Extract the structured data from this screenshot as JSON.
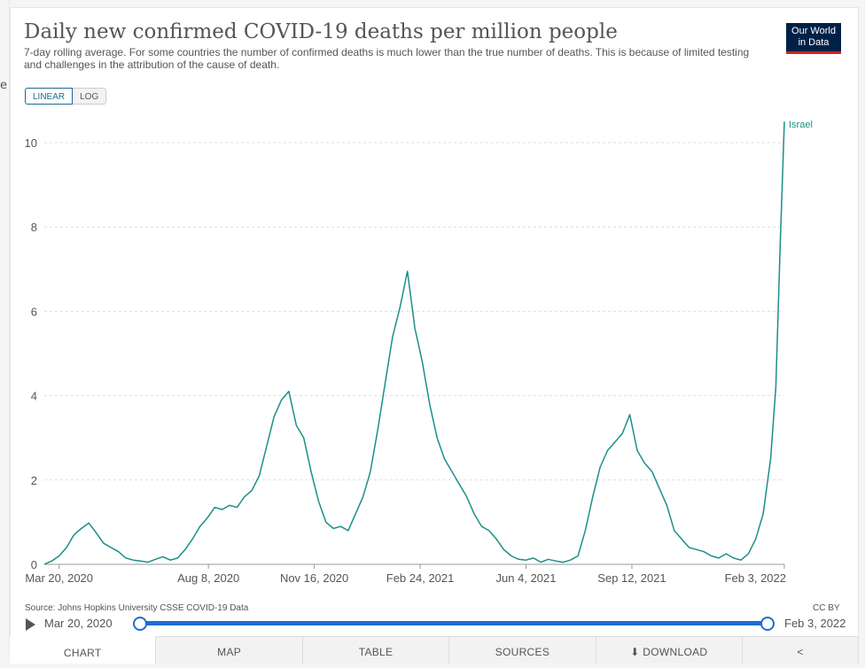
{
  "page": {
    "left_glyph": "e"
  },
  "header": {
    "title": "Daily new confirmed COVID-19 deaths per million people",
    "subtitle": "7-day rolling average. For some countries the number of confirmed deaths is much lower than the true number of deaths. This is because of limited testing and challenges in the attribution of the cause of death.",
    "logo_line1": "Our World",
    "logo_line2": "in Data"
  },
  "scale_toggle": {
    "linear_label": "LINEAR",
    "log_label": "LOG",
    "selected": "LINEAR"
  },
  "footer": {
    "source": "Source: Johns Hopkins University CSSE COVID-19 Data",
    "license": "CC BY"
  },
  "timeline": {
    "start_label": "Mar 20, 2020",
    "end_label": "Feb 3, 2022",
    "color": "#1f6bd6"
  },
  "tabs": [
    {
      "label": "CHART",
      "active": true
    },
    {
      "label": "MAP",
      "active": false
    },
    {
      "label": "TABLE",
      "active": false
    },
    {
      "label": "SOURCES",
      "active": false
    },
    {
      "label": "⬇ DOWNLOAD",
      "active": false
    },
    {
      "label": "share-icon",
      "active": false
    }
  ],
  "chart_data": {
    "type": "line",
    "title": "Daily new confirmed COVID-19 deaths per million people",
    "xlabel": "",
    "ylabel": "",
    "ylim": [
      0,
      10
    ],
    "yticks": [
      0,
      2,
      4,
      6,
      8,
      10
    ],
    "xticks": [
      "Mar 20, 2020",
      "Aug 8, 2020",
      "Nov 16, 2020",
      "Feb 24, 2021",
      "Jun 4, 2021",
      "Sep 12, 2021",
      "Feb 3, 2022"
    ],
    "x_domain": [
      "2020-03-06",
      "2022-02-03"
    ],
    "grid": true,
    "series": [
      {
        "name": "Israel",
        "color": "#1a8f8a",
        "points": [
          [
            "2020-03-06",
            0
          ],
          [
            "2020-03-13",
            0.08
          ],
          [
            "2020-03-20",
            0.2
          ],
          [
            "2020-03-27",
            0.4
          ],
          [
            "2020-04-03",
            0.7
          ],
          [
            "2020-04-10",
            0.85
          ],
          [
            "2020-04-17",
            0.98
          ],
          [
            "2020-04-24",
            0.75
          ],
          [
            "2020-05-01",
            0.5
          ],
          [
            "2020-05-08",
            0.4
          ],
          [
            "2020-05-15",
            0.3
          ],
          [
            "2020-05-22",
            0.15
          ],
          [
            "2020-05-29",
            0.1
          ],
          [
            "2020-06-05",
            0.08
          ],
          [
            "2020-06-12",
            0.05
          ],
          [
            "2020-06-19",
            0.12
          ],
          [
            "2020-06-26",
            0.18
          ],
          [
            "2020-07-03",
            0.1
          ],
          [
            "2020-07-10",
            0.15
          ],
          [
            "2020-07-17",
            0.35
          ],
          [
            "2020-07-24",
            0.6
          ],
          [
            "2020-07-31",
            0.9
          ],
          [
            "2020-08-07",
            1.1
          ],
          [
            "2020-08-14",
            1.35
          ],
          [
            "2020-08-21",
            1.3
          ],
          [
            "2020-08-28",
            1.4
          ],
          [
            "2020-09-04",
            1.35
          ],
          [
            "2020-09-11",
            1.6
          ],
          [
            "2020-09-18",
            1.75
          ],
          [
            "2020-09-25",
            2.1
          ],
          [
            "2020-10-02",
            2.8
          ],
          [
            "2020-10-09",
            3.5
          ],
          [
            "2020-10-16",
            3.9
          ],
          [
            "2020-10-23",
            4.1
          ],
          [
            "2020-10-30",
            3.3
          ],
          [
            "2020-11-06",
            3.0
          ],
          [
            "2020-11-13",
            2.2
          ],
          [
            "2020-11-20",
            1.5
          ],
          [
            "2020-11-27",
            1.0
          ],
          [
            "2020-12-04",
            0.85
          ],
          [
            "2020-12-11",
            0.9
          ],
          [
            "2020-12-18",
            0.8
          ],
          [
            "2020-12-25",
            1.2
          ],
          [
            "2021-01-01",
            1.6
          ],
          [
            "2021-01-08",
            2.2
          ],
          [
            "2021-01-15",
            3.2
          ],
          [
            "2021-01-22",
            4.3
          ],
          [
            "2021-01-29",
            5.4
          ],
          [
            "2021-02-05",
            6.1
          ],
          [
            "2021-02-12",
            6.95
          ],
          [
            "2021-02-19",
            5.6
          ],
          [
            "2021-02-26",
            4.8
          ],
          [
            "2021-03-05",
            3.8
          ],
          [
            "2021-03-12",
            3.0
          ],
          [
            "2021-03-19",
            2.5
          ],
          [
            "2021-03-26",
            2.2
          ],
          [
            "2021-04-02",
            1.9
          ],
          [
            "2021-04-09",
            1.6
          ],
          [
            "2021-04-16",
            1.2
          ],
          [
            "2021-04-23",
            0.9
          ],
          [
            "2021-04-30",
            0.8
          ],
          [
            "2021-05-07",
            0.6
          ],
          [
            "2021-05-14",
            0.35
          ],
          [
            "2021-05-21",
            0.2
          ],
          [
            "2021-05-28",
            0.12
          ],
          [
            "2021-06-04",
            0.1
          ],
          [
            "2021-06-11",
            0.15
          ],
          [
            "2021-06-18",
            0.05
          ],
          [
            "2021-06-25",
            0.12
          ],
          [
            "2021-07-02",
            0.08
          ],
          [
            "2021-07-09",
            0.05
          ],
          [
            "2021-07-16",
            0.1
          ],
          [
            "2021-07-23",
            0.2
          ],
          [
            "2021-07-30",
            0.8
          ],
          [
            "2021-08-06",
            1.6
          ],
          [
            "2021-08-13",
            2.3
          ],
          [
            "2021-08-20",
            2.7
          ],
          [
            "2021-08-27",
            2.9
          ],
          [
            "2021-09-03",
            3.1
          ],
          [
            "2021-09-10",
            3.55
          ],
          [
            "2021-09-17",
            2.7
          ],
          [
            "2021-09-24",
            2.4
          ],
          [
            "2021-10-01",
            2.2
          ],
          [
            "2021-10-08",
            1.8
          ],
          [
            "2021-10-15",
            1.4
          ],
          [
            "2021-10-22",
            0.8
          ],
          [
            "2021-10-29",
            0.6
          ],
          [
            "2021-11-05",
            0.4
          ],
          [
            "2021-11-12",
            0.35
          ],
          [
            "2021-11-19",
            0.3
          ],
          [
            "2021-11-26",
            0.2
          ],
          [
            "2021-12-03",
            0.15
          ],
          [
            "2021-12-10",
            0.25
          ],
          [
            "2021-12-17",
            0.15
          ],
          [
            "2021-12-24",
            0.1
          ],
          [
            "2021-12-31",
            0.25
          ],
          [
            "2022-01-07",
            0.6
          ],
          [
            "2022-01-14",
            1.2
          ],
          [
            "2022-01-21",
            2.5
          ],
          [
            "2022-01-26",
            4.2
          ],
          [
            "2022-01-30",
            7.5
          ],
          [
            "2022-02-03",
            10.5
          ]
        ]
      }
    ]
  }
}
